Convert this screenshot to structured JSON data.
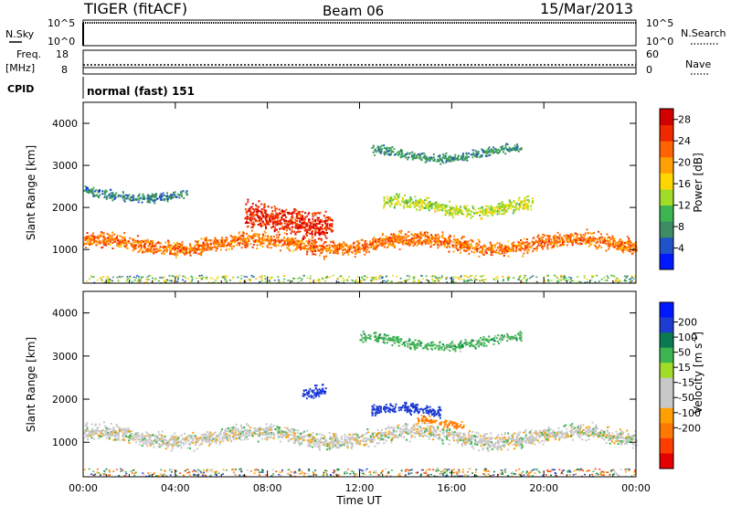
{
  "header": {
    "title": "TIGER (fitACF)",
    "beam": "Beam 06",
    "date": "15/Mar/2013"
  },
  "colors": {
    "power_scale": [
      "#0018ff",
      "#2052c8",
      "#3c8c64",
      "#3cb450",
      "#a0dc28",
      "#ffd700",
      "#ffa000",
      "#ff6400",
      "#f02800",
      "#d20000"
    ],
    "velocity_scale": [
      "#0018ff",
      "#1e3cd2",
      "#0a7a50",
      "#3cb450",
      "#a0dc28",
      "#c8c8c8",
      "#c8c8c8",
      "#ffa000",
      "#ff7800",
      "#ff3c00",
      "#e60000"
    ]
  },
  "panels": {
    "nsky": {
      "label": "N.Sky",
      "right_label": "N.Search",
      "left_ticks": [
        "10^5",
        "10^0"
      ],
      "right_ticks": [
        "10^5",
        "10^0"
      ]
    },
    "freq": {
      "label_line1": "Freq.",
      "label_line2": "[MHz]",
      "left_ticks": [
        "18",
        "8"
      ],
      "right_label": "Nave",
      "right_ticks": [
        "60",
        "0"
      ]
    },
    "cpid": {
      "label": "CPID",
      "text": "normal (fast) 151"
    }
  },
  "chart_data": [
    {
      "type": "heatmap",
      "name": "power",
      "xlabel": "",
      "ylabel": "Slant Range [km]",
      "y_ticks": [
        1000,
        2000,
        3000,
        4000
      ],
      "ylim": [
        200,
        4500
      ],
      "xlim_hours": [
        0,
        24
      ],
      "colorbar": {
        "label": "Power [dB]",
        "ticks": [
          4,
          8,
          12,
          16,
          20,
          24,
          28
        ],
        "range": [
          0,
          30
        ]
      },
      "features": [
        {
          "start_h": 0.0,
          "end_h": 24.0,
          "center_km": 1150,
          "width_km": 420,
          "power_db": 22
        },
        {
          "start_h": 7.0,
          "end_h": 10.8,
          "center_km": 1700,
          "width_km": 700,
          "power_db": 26
        },
        {
          "start_h": 13.0,
          "end_h": 19.5,
          "center_km": 2050,
          "width_km": 350,
          "power_db": 14
        },
        {
          "start_h": 12.5,
          "end_h": 19.0,
          "center_km": 3300,
          "width_km": 250,
          "power_db": 8
        },
        {
          "start_h": 0.0,
          "end_h": 4.5,
          "center_km": 2350,
          "width_km": 250,
          "power_db": 7
        }
      ]
    },
    {
      "type": "heatmap",
      "name": "velocity",
      "xlabel": "Time UT",
      "ylabel": "Slant Range [km]",
      "x_ticks": [
        "00:00",
        "04:00",
        "08:00",
        "12:00",
        "16:00",
        "20:00",
        "00:00"
      ],
      "y_ticks": [
        1000,
        2000,
        3000,
        4000
      ],
      "ylim": [
        200,
        4500
      ],
      "xlim_hours": [
        0,
        24
      ],
      "colorbar": {
        "label": "Velocity [m s-1]",
        "ticks": [
          200,
          100,
          50,
          15,
          -15,
          -50,
          -100,
          -200
        ],
        "range": [
          -250,
          250
        ]
      },
      "features": [
        {
          "start_h": 0.0,
          "end_h": 24.0,
          "center_km": 1150,
          "width_km": 420,
          "velocity_ms": 0
        },
        {
          "start_h": 12.5,
          "end_h": 15.5,
          "center_km": 1700,
          "width_km": 300,
          "velocity_ms": 150
        },
        {
          "start_h": 9.5,
          "end_h": 10.5,
          "center_km": 2300,
          "width_km": 300,
          "velocity_ms": 180
        },
        {
          "start_h": 12.0,
          "end_h": 19.0,
          "center_km": 3350,
          "width_km": 250,
          "velocity_ms": 30
        },
        {
          "start_h": 14.5,
          "end_h": 16.5,
          "center_km": 1450,
          "width_km": 200,
          "velocity_ms": -60
        }
      ]
    }
  ]
}
